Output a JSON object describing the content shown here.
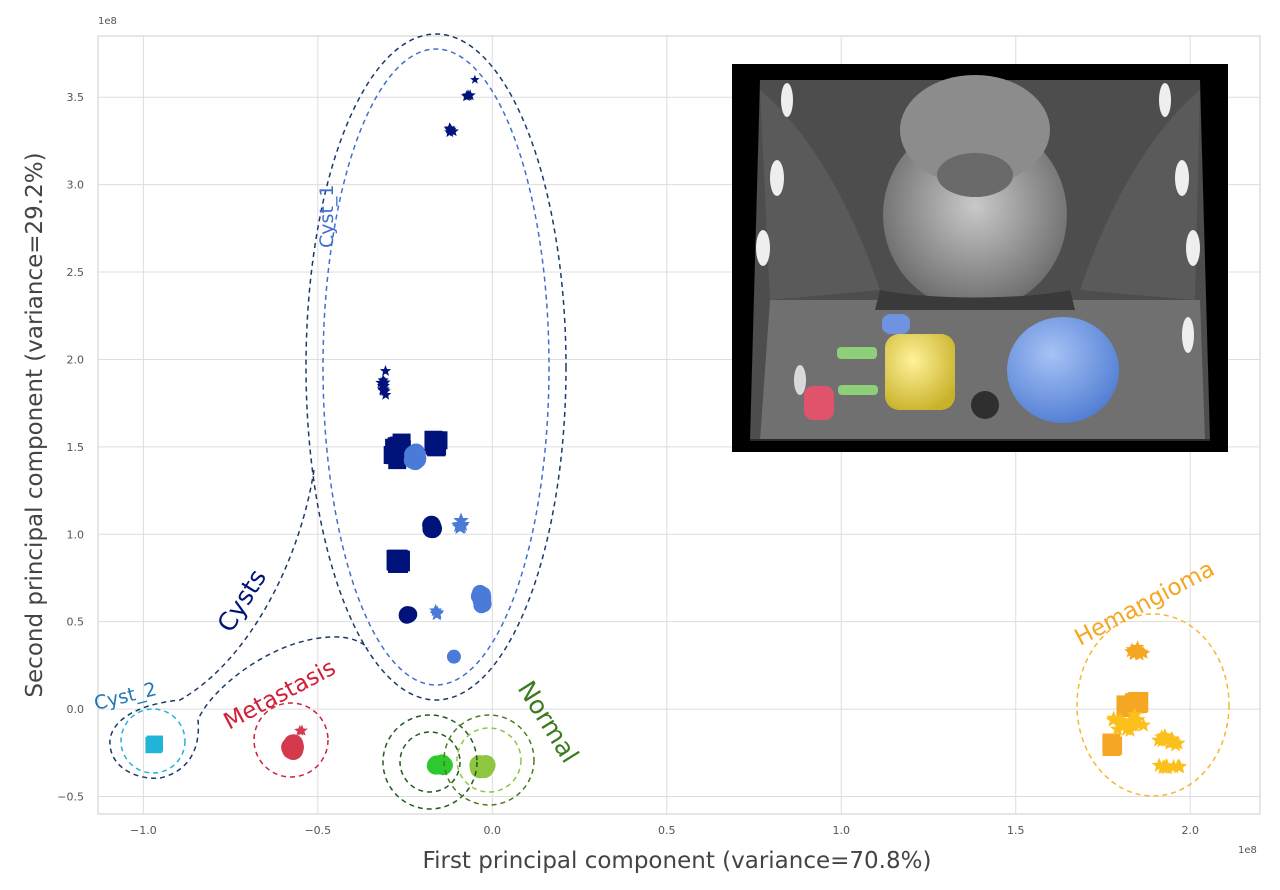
{
  "chart_data": {
    "type": "scatter",
    "title": "",
    "xlabel": "First principal component (variance=70.8%)",
    "ylabel": "Second principal component (variance=29.2%)",
    "x_offset_label": "1e8",
    "y_offset_label": "1e8",
    "xlim": [
      -1.13,
      2.2
    ],
    "ylim": [
      -0.6,
      3.85
    ],
    "xticks": [
      -1.0,
      -0.5,
      0.0,
      0.5,
      1.0,
      1.5,
      2.0
    ],
    "xtick_labels": [
      "−1.0",
      "−0.5",
      "0.0",
      "0.5",
      "1.0",
      "1.5",
      "2.0"
    ],
    "yticks": [
      -0.5,
      0.0,
      0.5,
      1.0,
      1.5,
      2.0,
      2.5,
      3.0,
      3.5
    ],
    "ytick_labels": [
      "−0.5",
      "0.0",
      "0.5",
      "1.0",
      "1.5",
      "2.0",
      "2.5",
      "3.0",
      "3.5"
    ],
    "grid": true,
    "inset": "3D rendered CT volume with segmented lesions",
    "series": [
      {
        "color": "#00137a",
        "clusters": [
          {
            "x": -0.31,
            "y": 1.85,
            "shape": "star",
            "n": 14,
            "sx": 0.015,
            "sy": 0.1,
            "r": 6
          },
          {
            "x": -0.27,
            "y": 1.48,
            "shape": "square",
            "n": 18,
            "sx": 0.02,
            "sy": 0.07,
            "r": 9
          },
          {
            "x": -0.16,
            "y": 1.52,
            "shape": "square",
            "n": 12,
            "sx": 0.012,
            "sy": 0.04,
            "r": 9
          },
          {
            "x": -0.27,
            "y": 0.85,
            "shape": "square",
            "n": 8,
            "sx": 0.012,
            "sy": 0.025,
            "r": 10
          },
          {
            "x": -0.17,
            "y": 1.04,
            "shape": "circle",
            "n": 8,
            "sx": 0.012,
            "sy": 0.02,
            "r": 9
          },
          {
            "x": -0.24,
            "y": 0.54,
            "shape": "circle",
            "n": 5,
            "sx": 0.008,
            "sy": 0.01,
            "r": 8
          },
          {
            "x": -0.12,
            "y": 3.32,
            "shape": "star",
            "n": 6,
            "sx": 0.01,
            "sy": 0.04,
            "r": 6
          },
          {
            "x": -0.07,
            "y": 3.51,
            "shape": "star",
            "n": 5,
            "sx": 0.01,
            "sy": 0.01,
            "r": 6
          },
          {
            "x": -0.05,
            "y": 3.6,
            "shape": "star",
            "n": 1,
            "sx": 0,
            "sy": 0,
            "r": 5
          }
        ]
      },
      {
        "color": "#4a7bd8",
        "clusters": [
          {
            "x": -0.22,
            "y": 1.44,
            "shape": "circle",
            "n": 12,
            "sx": 0.012,
            "sy": 0.05,
            "r": 9
          },
          {
            "x": -0.09,
            "y": 1.06,
            "shape": "star",
            "n": 8,
            "sx": 0.01,
            "sy": 0.03,
            "r": 8
          },
          {
            "x": -0.16,
            "y": 0.55,
            "shape": "star",
            "n": 6,
            "sx": 0.008,
            "sy": 0.02,
            "r": 7
          },
          {
            "x": -0.03,
            "y": 0.63,
            "shape": "circle",
            "n": 14,
            "sx": 0.02,
            "sy": 0.05,
            "r": 8
          },
          {
            "x": -0.11,
            "y": 0.3,
            "shape": "circle",
            "n": 1,
            "sx": 0,
            "sy": 0,
            "r": 7
          }
        ]
      },
      {
        "color": "#22b4d6",
        "clusters": [
          {
            "x": -0.97,
            "y": -0.2,
            "shape": "square",
            "n": 4,
            "sx": 0.008,
            "sy": 0.015,
            "r": 8
          }
        ]
      },
      {
        "color": "#d33b4c",
        "clusters": [
          {
            "x": -0.57,
            "y": -0.22,
            "shape": "circle",
            "n": 6,
            "sx": 0.01,
            "sy": 0.03,
            "r": 10
          },
          {
            "x": -0.55,
            "y": -0.12,
            "shape": "star",
            "n": 3,
            "sx": 0.008,
            "sy": 0.01,
            "r": 6
          }
        ]
      },
      {
        "color": "#2ec92e",
        "clusters": [
          {
            "x": -0.15,
            "y": -0.32,
            "shape": "circle",
            "n": 10,
            "sx": 0.025,
            "sy": 0.012,
            "r": 9
          }
        ]
      },
      {
        "color": "#8ec63f",
        "clusters": [
          {
            "x": -0.025,
            "y": -0.33,
            "shape": "circle",
            "n": 8,
            "sx": 0.015,
            "sy": 0.02,
            "r": 10
          }
        ]
      },
      {
        "color": "#f5a623",
        "clusters": [
          {
            "x": 1.85,
            "y": 0.32,
            "shape": "star",
            "n": 16,
            "sx": 0.03,
            "sy": 0.05,
            "r": 7
          },
          {
            "x": 1.84,
            "y": 0.03,
            "shape": "square",
            "n": 6,
            "sx": 0.03,
            "sy": 0.03,
            "r": 10
          },
          {
            "x": 1.78,
            "y": -0.22,
            "shape": "square",
            "n": 4,
            "sx": 0.02,
            "sy": 0.05,
            "r": 9
          }
        ]
      },
      {
        "color": "#fcc01c",
        "clusters": [
          {
            "x": 1.82,
            "y": -0.08,
            "shape": "star",
            "n": 20,
            "sx": 0.06,
            "sy": 0.06,
            "r": 8
          },
          {
            "x": 1.94,
            "y": -0.17,
            "shape": "star",
            "n": 14,
            "sx": 0.05,
            "sy": 0.05,
            "r": 8
          },
          {
            "x": 1.94,
            "y": -0.33,
            "shape": "star",
            "n": 10,
            "sx": 0.04,
            "sy": 0.02,
            "r": 8
          }
        ]
      }
    ],
    "annotations": [
      {
        "text": "Cyst_1",
        "color": "#3f6fd0"
      },
      {
        "text": "Cysts",
        "color": "#00137a"
      },
      {
        "text": "Cyst_2",
        "color": "#1f77b4"
      },
      {
        "text": "Metastasis",
        "color": "#d11f3a"
      },
      {
        "text": "Normal",
        "color": "#3b7a1e"
      },
      {
        "text": "Hemangioma",
        "color": "#f5a623"
      }
    ]
  }
}
